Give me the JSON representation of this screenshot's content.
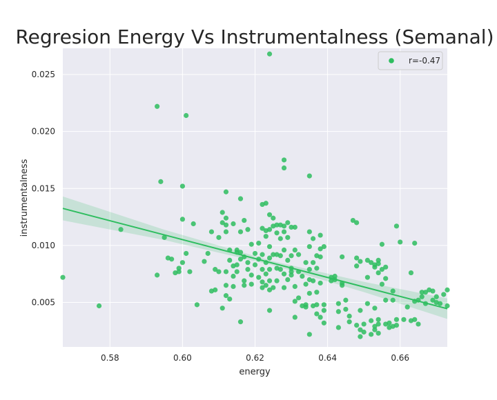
{
  "chart_data": {
    "type": "scatter",
    "title": "Regresion Energy Vs Instrumentalness (Semanal)",
    "xlabel": "energy",
    "ylabel": "instrumentalness",
    "xlim": [
      0.567,
      0.673
    ],
    "ylim": [
      0.0011,
      0.0273
    ],
    "xticks": [
      {
        "value": 0.58,
        "label": "0.58"
      },
      {
        "value": 0.6,
        "label": "0.60"
      },
      {
        "value": 0.62,
        "label": "0.62"
      },
      {
        "value": 0.64,
        "label": "0.64"
      },
      {
        "value": 0.66,
        "label": "0.66"
      }
    ],
    "yticks": [
      {
        "value": 0.005,
        "label": "0.005"
      },
      {
        "value": 0.01,
        "label": "0.010"
      },
      {
        "value": 0.015,
        "label": "0.015"
      },
      {
        "value": 0.02,
        "label": "0.020"
      },
      {
        "value": 0.025,
        "label": "0.025"
      }
    ],
    "grid": true,
    "legend": {
      "position": "top-right",
      "entries": [
        {
          "label": "r=-0.47"
        }
      ]
    },
    "colors": {
      "background": "#eaeaf2",
      "points": "#2ebd5f",
      "line": "#2ebd5f",
      "band": "#2ebd5f",
      "grid": "#ffffff"
    },
    "regression": {
      "x": [
        0.567,
        0.673
      ],
      "y": [
        0.01325,
        0.00445
      ],
      "band_halfwidth_at_x": [
        0.00105,
        0.00045,
        0.00018,
        0.00045,
        0.0009
      ],
      "band_x": [
        0.567,
        0.595,
        0.625,
        0.65,
        0.673
      ]
    },
    "series": [
      {
        "points": [
          [
            0.567,
            0.0072
          ],
          [
            0.577,
            0.0047
          ],
          [
            0.583,
            0.0114
          ],
          [
            0.593,
            0.0222
          ],
          [
            0.594,
            0.0156
          ],
          [
            0.601,
            0.0214
          ],
          [
            0.6,
            0.0152
          ],
          [
            0.593,
            0.0074
          ],
          [
            0.595,
            0.0107
          ],
          [
            0.596,
            0.0089
          ],
          [
            0.597,
            0.0088
          ],
          [
            0.598,
            0.0076
          ],
          [
            0.599,
            0.0077
          ],
          [
            0.599,
            0.008
          ],
          [
            0.6,
            0.0123
          ],
          [
            0.6,
            0.0085
          ],
          [
            0.601,
            0.0093
          ],
          [
            0.602,
            0.0077
          ],
          [
            0.603,
            0.0119
          ],
          [
            0.604,
            0.0048
          ],
          [
            0.606,
            0.0086
          ],
          [
            0.607,
            0.0093
          ],
          [
            0.608,
            0.006
          ],
          [
            0.608,
            0.0112
          ],
          [
            0.609,
            0.0061
          ],
          [
            0.609,
            0.0079
          ],
          [
            0.61,
            0.0077
          ],
          [
            0.61,
            0.0107
          ],
          [
            0.611,
            0.0129
          ],
          [
            0.611,
            0.012
          ],
          [
            0.611,
            0.0045
          ],
          [
            0.612,
            0.0147
          ],
          [
            0.612,
            0.0124
          ],
          [
            0.612,
            0.0118
          ],
          [
            0.612,
            0.0112
          ],
          [
            0.612,
            0.0077
          ],
          [
            0.612,
            0.0065
          ],
          [
            0.612,
            0.0056
          ],
          [
            0.613,
            0.0096
          ],
          [
            0.613,
            0.0087
          ],
          [
            0.613,
            0.0053
          ],
          [
            0.614,
            0.0119
          ],
          [
            0.614,
            0.0082
          ],
          [
            0.614,
            0.0073
          ],
          [
            0.614,
            0.0064
          ],
          [
            0.615,
            0.0096
          ],
          [
            0.615,
            0.0094
          ],
          [
            0.615,
            0.0083
          ],
          [
            0.615,
            0.0077
          ],
          [
            0.616,
            0.0141
          ],
          [
            0.616,
            0.0112
          ],
          [
            0.616,
            0.0033
          ],
          [
            0.616,
            0.0094
          ],
          [
            0.616,
            0.0088
          ],
          [
            0.617,
            0.0122
          ],
          [
            0.617,
            0.009
          ],
          [
            0.617,
            0.0069
          ],
          [
            0.617,
            0.0065
          ],
          [
            0.618,
            0.0114
          ],
          [
            0.618,
            0.0085
          ],
          [
            0.618,
            0.0079
          ],
          [
            0.619,
            0.0074
          ],
          [
            0.619,
            0.0066
          ],
          [
            0.619,
            0.0101
          ],
          [
            0.62,
            0.0093
          ],
          [
            0.62,
            0.0083
          ],
          [
            0.621,
            0.0102
          ],
          [
            0.621,
            0.0088
          ],
          [
            0.621,
            0.0072
          ],
          [
            0.622,
            0.0136
          ],
          [
            0.622,
            0.0115
          ],
          [
            0.622,
            0.0092
          ],
          [
            0.622,
            0.0079
          ],
          [
            0.622,
            0.0068
          ],
          [
            0.622,
            0.0063
          ],
          [
            0.623,
            0.0137
          ],
          [
            0.623,
            0.0113
          ],
          [
            0.623,
            0.0108
          ],
          [
            0.623,
            0.0085
          ],
          [
            0.623,
            0.0075
          ],
          [
            0.623,
            0.0065
          ],
          [
            0.624,
            0.0268
          ],
          [
            0.624,
            0.0127
          ],
          [
            0.624,
            0.0114
          ],
          [
            0.624,
            0.0099
          ],
          [
            0.624,
            0.0089
          ],
          [
            0.624,
            0.0079
          ],
          [
            0.624,
            0.0069
          ],
          [
            0.624,
            0.0061
          ],
          [
            0.624,
            0.0043
          ],
          [
            0.625,
            0.0124
          ],
          [
            0.625,
            0.0117
          ],
          [
            0.625,
            0.0092
          ],
          [
            0.625,
            0.0063
          ],
          [
            0.626,
            0.0118
          ],
          [
            0.626,
            0.0111
          ],
          [
            0.626,
            0.0092
          ],
          [
            0.626,
            0.008
          ],
          [
            0.626,
            0.0069
          ],
          [
            0.627,
            0.0118
          ],
          [
            0.627,
            0.0106
          ],
          [
            0.627,
            0.0079
          ],
          [
            0.627,
            0.0091
          ],
          [
            0.628,
            0.0117
          ],
          [
            0.628,
            0.0112
          ],
          [
            0.628,
            0.0096
          ],
          [
            0.628,
            0.0075
          ],
          [
            0.628,
            0.0063
          ],
          [
            0.628,
            0.0175
          ],
          [
            0.628,
            0.0168
          ],
          [
            0.629,
            0.012
          ],
          [
            0.629,
            0.0107
          ],
          [
            0.629,
            0.0087
          ],
          [
            0.629,
            0.007
          ],
          [
            0.63,
            0.0116
          ],
          [
            0.63,
            0.0091
          ],
          [
            0.63,
            0.008
          ],
          [
            0.63,
            0.0077
          ],
          [
            0.63,
            0.0074
          ],
          [
            0.631,
            0.0116
          ],
          [
            0.631,
            0.0096
          ],
          [
            0.631,
            0.0064
          ],
          [
            0.631,
            0.0051
          ],
          [
            0.631,
            0.0037
          ],
          [
            0.632,
            0.0092
          ],
          [
            0.632,
            0.0077
          ],
          [
            0.632,
            0.0054
          ],
          [
            0.633,
            0.0073
          ],
          [
            0.633,
            0.0047
          ],
          [
            0.634,
            0.0085
          ],
          [
            0.634,
            0.0066
          ],
          [
            0.634,
            0.0048
          ],
          [
            0.634,
            0.0046
          ],
          [
            0.635,
            0.0161
          ],
          [
            0.635,
            0.0112
          ],
          [
            0.635,
            0.0099
          ],
          [
            0.635,
            0.0079
          ],
          [
            0.635,
            0.007
          ],
          [
            0.635,
            0.0058
          ],
          [
            0.635,
            0.0022
          ],
          [
            0.636,
            0.0106
          ],
          [
            0.636,
            0.0085
          ],
          [
            0.636,
            0.0069
          ],
          [
            0.636,
            0.0047
          ],
          [
            0.637,
            0.0091
          ],
          [
            0.637,
            0.008
          ],
          [
            0.637,
            0.0059
          ],
          [
            0.637,
            0.0048
          ],
          [
            0.637,
            0.004
          ],
          [
            0.638,
            0.0109
          ],
          [
            0.638,
            0.0097
          ],
          [
            0.638,
            0.009
          ],
          [
            0.638,
            0.0067
          ],
          [
            0.638,
            0.0037
          ],
          [
            0.639,
            0.0099
          ],
          [
            0.639,
            0.0048
          ],
          [
            0.639,
            0.0043
          ],
          [
            0.639,
            0.0032
          ],
          [
            0.641,
            0.0072
          ],
          [
            0.641,
            0.0069
          ],
          [
            0.642,
            0.007
          ],
          [
            0.642,
            0.0073
          ],
          [
            0.643,
            0.0042
          ],
          [
            0.643,
            0.0028
          ],
          [
            0.643,
            0.0049
          ],
          [
            0.644,
            0.009
          ],
          [
            0.644,
            0.0067
          ],
          [
            0.644,
            0.0065
          ],
          [
            0.645,
            0.0052
          ],
          [
            0.645,
            0.0044
          ],
          [
            0.646,
            0.0038
          ],
          [
            0.646,
            0.0033
          ],
          [
            0.647,
            0.0122
          ],
          [
            0.648,
            0.012
          ],
          [
            0.648,
            0.0089
          ],
          [
            0.648,
            0.0082
          ],
          [
            0.648,
            0.003
          ],
          [
            0.649,
            0.0086
          ],
          [
            0.649,
            0.0043
          ],
          [
            0.649,
            0.0026
          ],
          [
            0.649,
            0.002
          ],
          [
            0.65,
            0.0031
          ],
          [
            0.65,
            0.0024
          ],
          [
            0.651,
            0.0087
          ],
          [
            0.651,
            0.0072
          ],
          [
            0.651,
            0.0049
          ],
          [
            0.652,
            0.0085
          ],
          [
            0.652,
            0.0034
          ],
          [
            0.652,
            0.0022
          ],
          [
            0.653,
            0.0083
          ],
          [
            0.653,
            0.0081
          ],
          [
            0.653,
            0.0045
          ],
          [
            0.653,
            0.0029
          ],
          [
            0.653,
            0.0026
          ],
          [
            0.654,
            0.0087
          ],
          [
            0.654,
            0.0084
          ],
          [
            0.654,
            0.0076
          ],
          [
            0.654,
            0.0035
          ],
          [
            0.654,
            0.0031
          ],
          [
            0.654,
            0.0023
          ],
          [
            0.655,
            0.0101
          ],
          [
            0.655,
            0.0079
          ],
          [
            0.655,
            0.0066
          ],
          [
            0.656,
            0.0081
          ],
          [
            0.656,
            0.0071
          ],
          [
            0.656,
            0.0031
          ],
          [
            0.656,
            0.0052
          ],
          [
            0.657,
            0.0032
          ],
          [
            0.657,
            0.0028
          ],
          [
            0.658,
            0.006
          ],
          [
            0.658,
            0.0052
          ],
          [
            0.658,
            0.0029
          ],
          [
            0.659,
            0.0117
          ],
          [
            0.659,
            0.0035
          ],
          [
            0.659,
            0.003
          ],
          [
            0.66,
            0.0103
          ],
          [
            0.661,
            0.0035
          ],
          [
            0.662,
            0.0046
          ],
          [
            0.663,
            0.0076
          ],
          [
            0.663,
            0.0034
          ],
          [
            0.664,
            0.0102
          ],
          [
            0.664,
            0.0051
          ],
          [
            0.664,
            0.0035
          ],
          [
            0.665,
            0.0052
          ],
          [
            0.665,
            0.0031
          ],
          [
            0.666,
            0.0059
          ],
          [
            0.666,
            0.0055
          ],
          [
            0.667,
            0.0059
          ],
          [
            0.667,
            0.0049
          ],
          [
            0.668,
            0.0061
          ],
          [
            0.669,
            0.006
          ],
          [
            0.669,
            0.0052
          ],
          [
            0.67,
            0.0055
          ],
          [
            0.67,
            0.005
          ],
          [
            0.671,
            0.0049
          ],
          [
            0.672,
            0.0057
          ],
          [
            0.673,
            0.0061
          ],
          [
            0.673,
            0.0047
          ]
        ]
      }
    ]
  }
}
